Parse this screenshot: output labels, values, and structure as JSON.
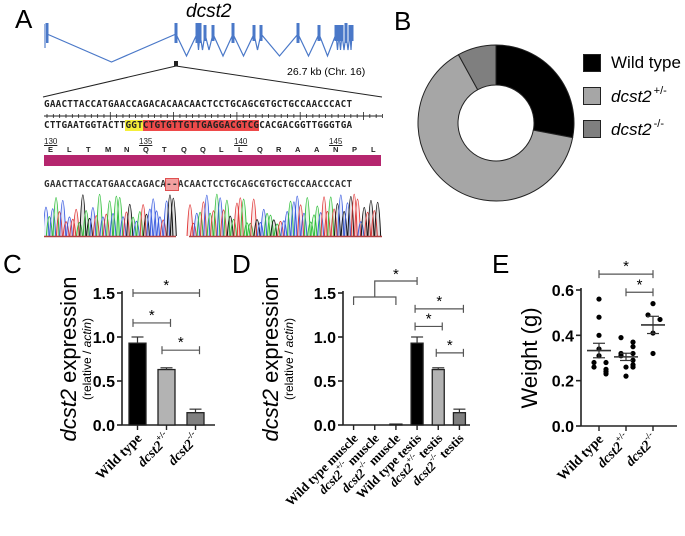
{
  "panels": {
    "A": {
      "letter": "A",
      "gene_title": "dcst2",
      "gene_size_label": "26.7 kb (Chr. 16)",
      "gene_color": "#4a78c8",
      "seq_forward": "GAACTTACCATGAACCAGACACAACAACTCCTGCAGCGTGCTGCCAACCCACT",
      "seq_reverse_parts": [
        {
          "text": "CTTGAATGGTACTT",
          "highlight": "none"
        },
        {
          "text": "GGT",
          "highlight": "yellow"
        },
        {
          "text": "CTGTGTTGTTGAGGACGTCG",
          "highlight": "red"
        },
        {
          "text": "CACGACGGTTGGGTGA",
          "highlight": "none"
        }
      ],
      "aa_numbers": [
        "130",
        "135",
        "140",
        "145"
      ],
      "aa_residues": [
        "E",
        "L",
        "T",
        "M",
        "N",
        "Q",
        "T",
        "Q",
        "Q",
        "L",
        "L",
        "Q",
        "R",
        "A",
        "A",
        "N",
        "P",
        "L"
      ],
      "translation_bar_color": "#b5266e",
      "seq_mutant_before": "GAACTTACCATGAACCAGACA",
      "seq_mutant_deletion": "--",
      "seq_mutant_after": "ACAACTCCTGCAGCGTGCTGCCAACCCACT",
      "highlight_colors": {
        "yellow": "#f5ef3a",
        "red": "#ee4a4a",
        "deletion": "#f2a0a0"
      }
    },
    "B": {
      "letter": "B"
    },
    "C": {
      "letter": "C"
    },
    "D": {
      "letter": "D"
    },
    "E": {
      "letter": "E"
    }
  },
  "chart_data": [
    {
      "id": "B",
      "type": "pie",
      "donut": true,
      "title": "",
      "legend_position": "right",
      "categories": [
        "Wild type",
        "dcst2 +/-",
        "dcst2 -/-"
      ],
      "legend": [
        {
          "name": "dcst2",
          "prefix": "Wild type",
          "italic": false,
          "sup": ""
        },
        {
          "name": "dcst2",
          "italic": true,
          "sup": "+/-"
        },
        {
          "name": "dcst2",
          "italic": true,
          "sup": "-/-"
        }
      ],
      "values": [
        28,
        64,
        8
      ],
      "colors": [
        "#000000",
        "#a6a6a6",
        "#7f7f7f"
      ]
    },
    {
      "id": "C",
      "type": "bar",
      "ylabel": "dcst2 expression",
      "ylabel_sub": "(relative / actin)",
      "ylim": [
        0,
        1.5
      ],
      "yticks": [
        "0.0",
        "0.5",
        "1.0",
        "1.5"
      ],
      "yticks_values": [
        0,
        0.5,
        1.0,
        1.5
      ],
      "categories": [
        {
          "main": "Wild type",
          "sup": ""
        },
        {
          "main": "dcst2",
          "sup": "+/-"
        },
        {
          "main": "dcst2",
          "sup": "-/-"
        }
      ],
      "values": [
        0.93,
        0.63,
        0.14
      ],
      "errors": [
        0.07,
        0.02,
        0.04
      ],
      "colors": [
        "#000000",
        "#b3b3b3",
        "#808080"
      ],
      "significance": [
        {
          "from": 0,
          "to": 2,
          "label": "*",
          "level": 1.5
        },
        {
          "from": 0,
          "to": 1,
          "label": "*",
          "level": 1.16
        },
        {
          "from": 1,
          "to": 2,
          "label": "*",
          "level": 0.85
        }
      ]
    },
    {
      "id": "D",
      "type": "bar",
      "ylabel": "dcst2 expression",
      "ylabel_sub": "(relative / actin)",
      "ylim": [
        0,
        1.5
      ],
      "yticks": [
        "0.0",
        "0.5",
        "1.0",
        "1.5"
      ],
      "yticks_values": [
        0,
        0.5,
        1.0,
        1.5
      ],
      "categories": [
        {
          "main": "Wild type muscle",
          "sup": ""
        },
        {
          "main": "dcst2",
          "sup": "+/-",
          "tail": "muscle"
        },
        {
          "main": "dcst2",
          "sup": "-/-",
          "tail": "muscle"
        },
        {
          "main": "Wild type testis",
          "sup": ""
        },
        {
          "main": "dcst2",
          "sup": "+/-",
          "tail": "testis"
        },
        {
          "main": "dcst2",
          "sup": "-/-",
          "tail": "testis"
        }
      ],
      "values": [
        0.0,
        0.0,
        0.01,
        0.93,
        0.63,
        0.14
      ],
      "errors": [
        0.0,
        0.0,
        0.0,
        0.07,
        0.02,
        0.04
      ],
      "colors": [
        "#000000",
        "#b3b3b3",
        "#808080",
        "#000000",
        "#b3b3b3",
        "#808080"
      ],
      "significance": [
        {
          "type": "group",
          "group": [
            0,
            2
          ],
          "to": 4,
          "label": "*",
          "level": 2.3
        },
        {
          "type": "group",
          "group": [
            0,
            2
          ],
          "to": 3,
          "label": "*",
          "level": 1.5
        },
        {
          "from": 3,
          "to": 5,
          "label": "*",
          "level": 1.32
        },
        {
          "from": 3,
          "to": 4,
          "label": "*",
          "level": 1.12
        },
        {
          "from": 4,
          "to": 5,
          "label": "*",
          "level": 0.82
        }
      ]
    },
    {
      "id": "E",
      "type": "scatter",
      "ylabel": "Weight (g)",
      "ylim": [
        0,
        0.6
      ],
      "yticks": [
        "0.0",
        "0.2",
        "0.4",
        "0.6"
      ],
      "yticks_values": [
        0,
        0.2,
        0.4,
        0.6
      ],
      "categories": [
        {
          "main": "Wild type",
          "sup": ""
        },
        {
          "main": "dcst2",
          "sup": "+/-"
        },
        {
          "main": "dcst2",
          "sup": "-/-"
        }
      ],
      "points": [
        [
          0.56,
          0.48,
          0.4,
          0.34,
          0.31,
          0.28,
          0.28,
          0.26,
          0.25,
          0.23,
          0.24
        ],
        [
          0.39,
          0.37,
          0.35,
          0.32,
          0.32,
          0.31,
          0.29,
          0.27,
          0.26,
          0.26,
          0.22
        ],
        [
          0.54,
          0.49,
          0.47,
          0.41,
          0.32
        ]
      ],
      "means": [
        0.333,
        0.305,
        0.446
      ],
      "sems": [
        0.032,
        0.016,
        0.038
      ],
      "significance": [
        {
          "from": 0,
          "to": 2,
          "label": "*",
          "level": 0.67
        },
        {
          "from": 1,
          "to": 2,
          "label": "*",
          "level": 0.59
        }
      ]
    }
  ]
}
